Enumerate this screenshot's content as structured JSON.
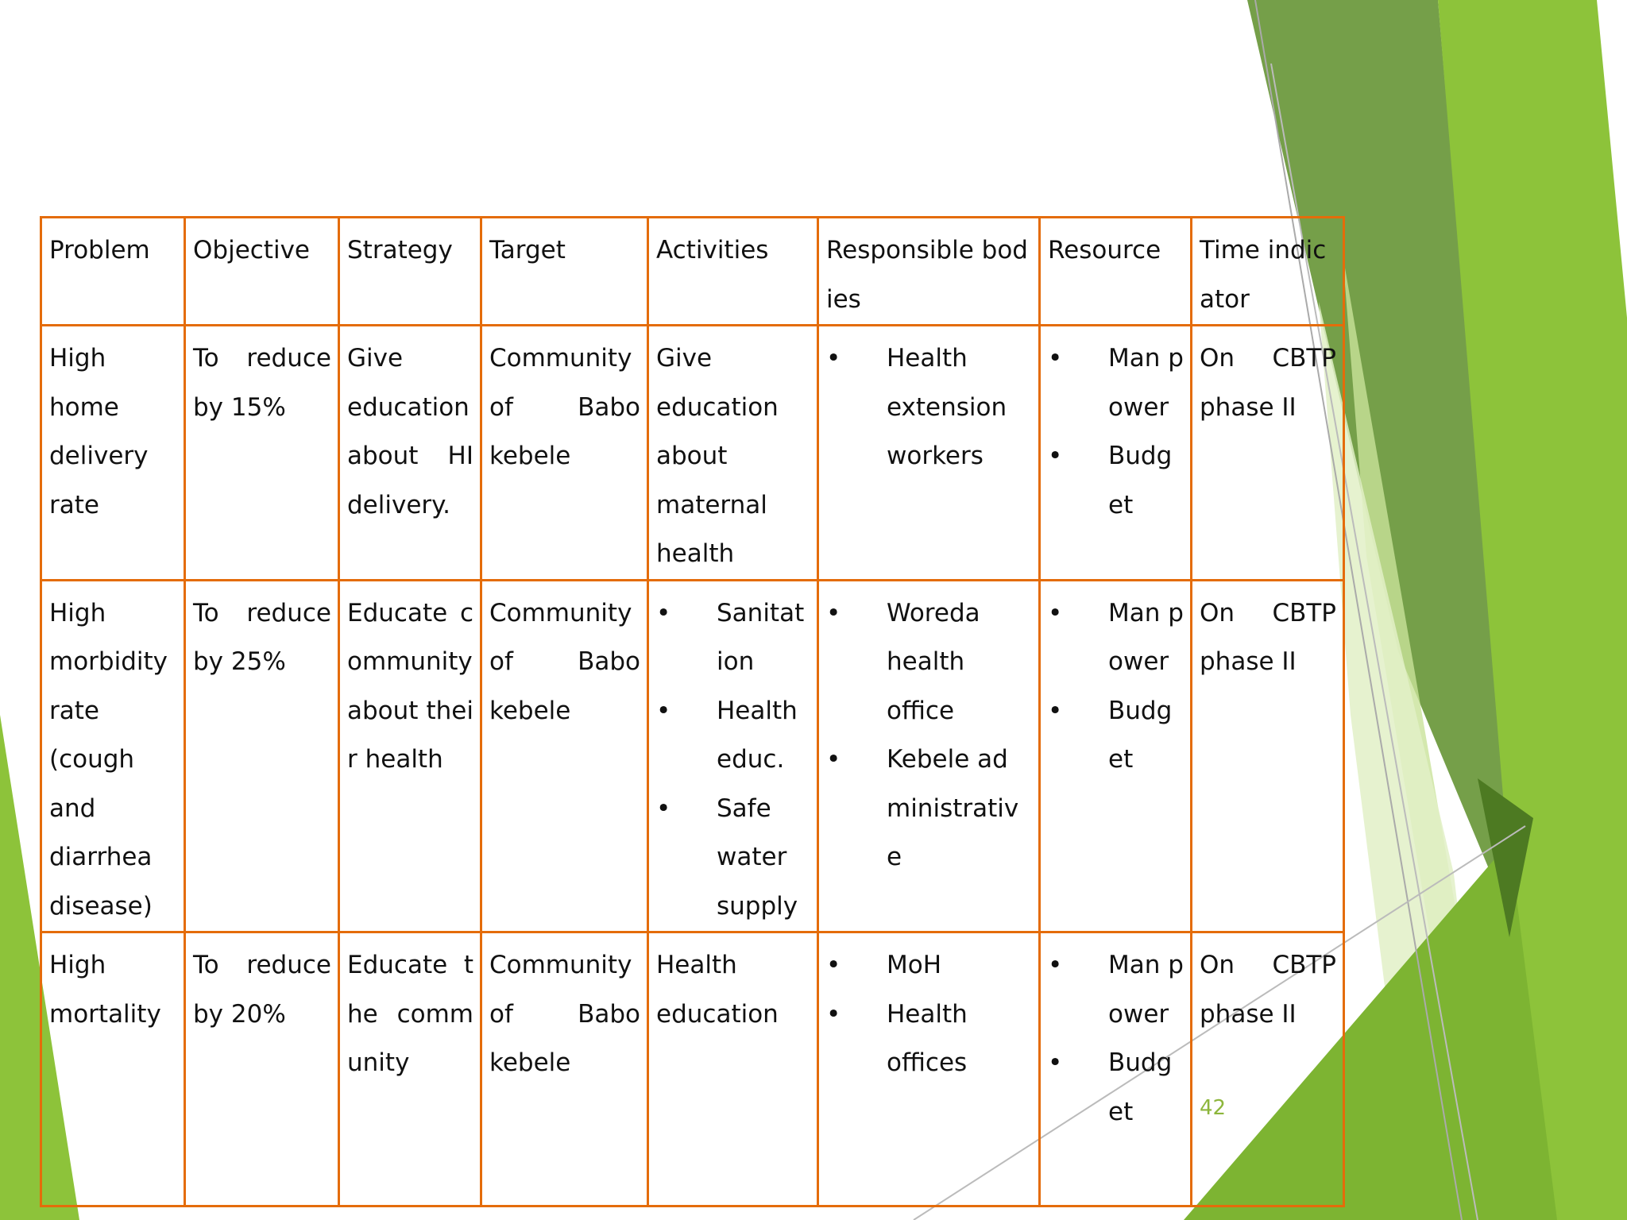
{
  "headers": [
    "Problem",
    "Objective",
    "Strategy",
    "Target",
    "Activities",
    "Responsible bodies",
    "Resource",
    "Time indicator"
  ],
  "rows": [
    {
      "problem": "High home delivery rate",
      "objective": "To reduce by 15%",
      "strategy": "Give education about HI delivery.",
      "target": "Community of Babo kebele",
      "activities_text": "Give education about maternal health",
      "responsible": [
        "Health extension workers"
      ],
      "resource": [
        "Man power",
        "Budget"
      ],
      "time": "On CBTP phase II"
    },
    {
      "problem": "High morbidity rate (cough and diarrhea disease)",
      "objective": "To reduce by 25%",
      "strategy": "Educate community about their health",
      "target": "Community of Babo kebele",
      "activities": [
        "Sanitation",
        "Health educ.",
        "Safe water supply"
      ],
      "responsible": [
        "Woreda health office",
        "Kebele administrative"
      ],
      "resource": [
        "Man power",
        "Budget"
      ],
      "time": "On CBTP phase II"
    },
    {
      "problem": "High mortality",
      "objective": "To reduce by 20%",
      "strategy": "Educate the community",
      "target": "Community of Babo kebele",
      "activities_text": "Health education",
      "responsible": [
        "MoH",
        "Health offices"
      ],
      "resource": [
        "Man power",
        "Budget"
      ],
      "time": "On CBTP phase II"
    }
  ],
  "bullet": "•",
  "page_number": "42",
  "colors": {
    "table_border": "#E46C0A",
    "accent_green": "#8DB63C",
    "dark_green": "#5E8A2E",
    "light_green": "#B5D56A"
  }
}
